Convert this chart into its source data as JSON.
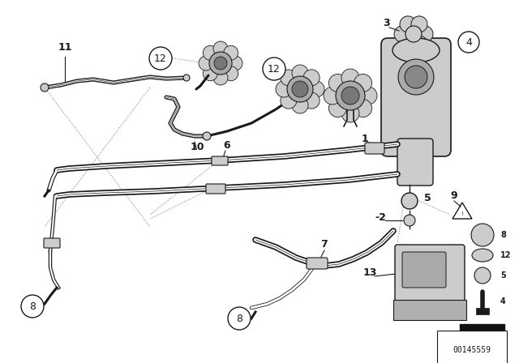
{
  "bg_color": "#ffffff",
  "part_number": "00145559",
  "dark": "#1a1a1a",
  "gray": "#888888",
  "light_gray": "#cccccc",
  "tube_lw": 2.2,
  "label_fontsize": 9,
  "figsize": [
    6.4,
    4.48
  ],
  "dpi": 100
}
